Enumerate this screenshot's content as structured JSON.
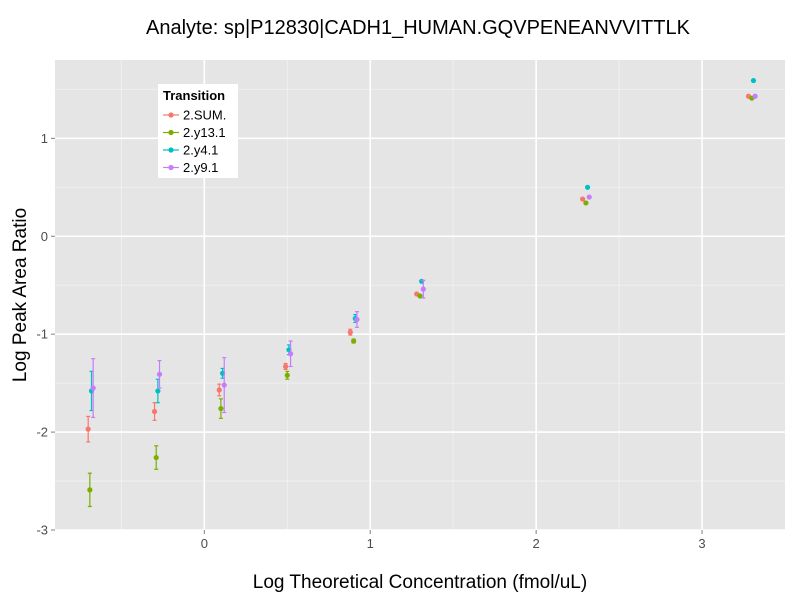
{
  "chart_data": {
    "type": "scatter",
    "title": "Analyte: sp|P12830|CADH1_HUMAN.GQVPENEANVVITTLK",
    "xlabel": "Log Theoretical Concentration (fmol/uL)",
    "ylabel": "Log Peak Area Ratio",
    "xlim": [
      -0.9,
      3.5
    ],
    "ylim": [
      -3,
      1.8
    ],
    "x_ticks": [
      0,
      1,
      2,
      3
    ],
    "x_tick_labels": [
      "0",
      "1",
      "2",
      "3"
    ],
    "y_ticks": [
      -3,
      -2,
      -1,
      0,
      1
    ],
    "y_tick_labels": [
      "-3",
      "-2",
      "-1",
      "0",
      "1"
    ],
    "grid": true,
    "legend": {
      "title": "Transition",
      "position": "top-left"
    },
    "series": [
      {
        "name": "2.SUM.",
        "color": "#F8766D",
        "points": [
          {
            "x": -0.7,
            "y": -1.97,
            "err": 0.13
          },
          {
            "x": -0.3,
            "y": -1.79,
            "err": 0.09
          },
          {
            "x": 0.09,
            "y": -1.57,
            "err": 0.06
          },
          {
            "x": 0.49,
            "y": -1.33,
            "err": 0.03
          },
          {
            "x": 0.88,
            "y": -0.98,
            "err": 0.03
          },
          {
            "x": 1.28,
            "y": -0.59,
            "err": 0.0
          },
          {
            "x": 2.28,
            "y": 0.38,
            "err": 0.0
          },
          {
            "x": 3.28,
            "y": 1.43,
            "err": 0.0
          }
        ]
      },
      {
        "name": "2.y13.1",
        "color": "#7CAE00",
        "points": [
          {
            "x": -0.69,
            "y": -2.59,
            "err": 0.17
          },
          {
            "x": -0.29,
            "y": -2.26,
            "err": 0.12
          },
          {
            "x": 0.1,
            "y": -1.76,
            "err": 0.1
          },
          {
            "x": 0.5,
            "y": -1.42,
            "err": 0.04
          },
          {
            "x": 0.9,
            "y": -1.07,
            "err": 0.02
          },
          {
            "x": 1.3,
            "y": -0.61,
            "err": 0.0
          },
          {
            "x": 2.3,
            "y": 0.34,
            "err": 0.0
          },
          {
            "x": 3.3,
            "y": 1.41,
            "err": 0.0
          }
        ]
      },
      {
        "name": "2.y4.1",
        "color": "#00BFC4",
        "points": [
          {
            "x": -0.68,
            "y": -1.58,
            "err": 0.2
          },
          {
            "x": -0.28,
            "y": -1.58,
            "err": 0.12
          },
          {
            "x": 0.11,
            "y": -1.4,
            "err": 0.05
          },
          {
            "x": 0.51,
            "y": -1.16,
            "err": 0.05
          },
          {
            "x": 0.91,
            "y": -0.84,
            "err": 0.04
          },
          {
            "x": 1.31,
            "y": -0.46,
            "err": 0.0
          },
          {
            "x": 2.31,
            "y": 0.5,
            "err": 0.0
          },
          {
            "x": 3.31,
            "y": 1.59,
            "err": 0.0
          }
        ]
      },
      {
        "name": "2.y9.1",
        "color": "#C77CFF",
        "points": [
          {
            "x": -0.67,
            "y": -1.55,
            "err": 0.3
          },
          {
            "x": -0.27,
            "y": -1.41,
            "err": 0.14
          },
          {
            "x": 0.12,
            "y": -1.52,
            "err": 0.28
          },
          {
            "x": 0.52,
            "y": -1.2,
            "err": 0.13
          },
          {
            "x": 0.92,
            "y": -0.85,
            "err": 0.08
          },
          {
            "x": 1.32,
            "y": -0.54,
            "err": 0.09
          },
          {
            "x": 2.32,
            "y": 0.4,
            "err": 0.0
          },
          {
            "x": 3.32,
            "y": 1.43,
            "err": 0.0
          }
        ]
      }
    ]
  }
}
